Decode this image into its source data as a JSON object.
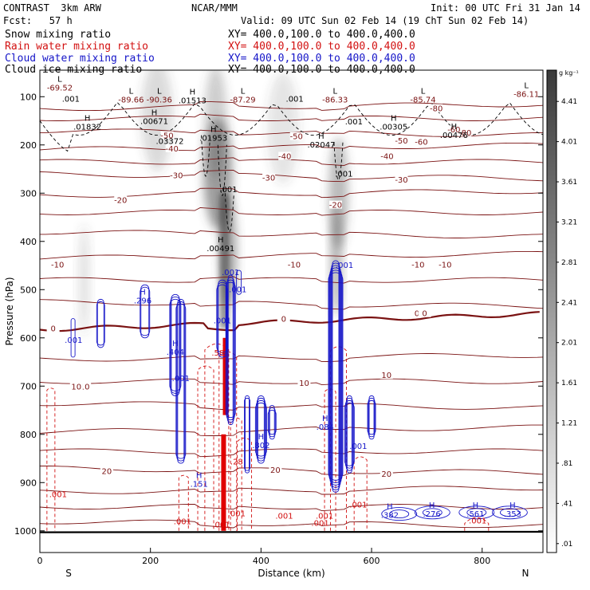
{
  "header": {
    "model": "CONTRAST  3km ARW",
    "center": "NCAR/MMM",
    "init": "Init: 00 UTC Fri 31 Jan 14",
    "fcst": "Fcst:   57 h",
    "valid": "Valid: 09 UTC Sun 02 Feb 14 (19 ChT Sun 02 Feb 14)"
  },
  "legend": [
    {
      "label": "Snow mixing ratio",
      "xy": "XY= 400.0,100.0 to 400.0,400.0",
      "color": "#000000"
    },
    {
      "label": "Rain water mixing ratio",
      "xy": "XY= 400.0,100.0 to 400.0,400.0",
      "color": "#d21010"
    },
    {
      "label": "Cloud water mixing ratio",
      "xy": "XY= 400.0,100.0 to 400.0,400.0",
      "color": "#1515c8"
    },
    {
      "label": "Cloud ice mixing ratio",
      "xy": "XY= 400.0,100.0 to 400.0,400.0",
      "color": "#000000"
    }
  ],
  "colorbar": {
    "unit": "g kg⁻¹",
    "labels": [
      "4.41",
      "4.01",
      "3.61",
      "3.21",
      "2.81",
      "2.41",
      "2.01",
      "1.61",
      "1.21",
      ".81",
      ".41",
      ".01"
    ]
  },
  "chart_data": {
    "type": "cross-section contour",
    "xlabel": "Distance (km)",
    "ylabel": "Pressure (hPa)",
    "xlim": [
      0,
      910
    ],
    "ylim": [
      1045,
      45
    ],
    "x_ticks": [
      0,
      200,
      400,
      600,
      800
    ],
    "y_ticks": [
      100,
      200,
      300,
      400,
      500,
      600,
      700,
      800,
      900,
      1000
    ],
    "x_end_labels": {
      "left": "S",
      "right": "N"
    },
    "grid": false,
    "temperature_contours": [
      {
        "label": "-80",
        "x": 717,
        "p": 127
      },
      {
        "label": "-80",
        "x": 769,
        "p": 177
      },
      {
        "label": "-60",
        "x": 749,
        "p": 171
      },
      {
        "label": "-60",
        "x": 690,
        "p": 196
      },
      {
        "label": "-50",
        "x": 230,
        "p": 183
      },
      {
        "label": "-50",
        "x": 464,
        "p": 185
      },
      {
        "label": "-50",
        "x": 654,
        "p": 194
      },
      {
        "label": "-40",
        "x": 239,
        "p": 210
      },
      {
        "label": "-40",
        "x": 443,
        "p": 226
      },
      {
        "label": "-40",
        "x": 628,
        "p": 226
      },
      {
        "label": "-30",
        "x": 247,
        "p": 266
      },
      {
        "label": "-30",
        "x": 414,
        "p": 271
      },
      {
        "label": "-30",
        "x": 654,
        "p": 275
      },
      {
        "label": "-20",
        "x": 146,
        "p": 317
      },
      {
        "label": "-20",
        "x": 535,
        "p": 327
      },
      {
        "label": "-10",
        "x": 32,
        "p": 451
      },
      {
        "label": "-10",
        "x": 460,
        "p": 451
      },
      {
        "label": "-10",
        "x": 684,
        "p": 451
      },
      {
        "label": "-10",
        "x": 733,
        "p": 451
      },
      {
        "label": "0",
        "x": 682,
        "p": 552
      },
      {
        "label": "0",
        "x": 696,
        "p": 552
      },
      {
        "label": "0",
        "x": 441,
        "p": 563
      },
      {
        "label": "0",
        "x": 24,
        "p": 583
      },
      {
        "label": "10",
        "x": 81,
        "p": 704
      },
      {
        "label": "10",
        "x": 478,
        "p": 696
      },
      {
        "label": "10",
        "x": 627,
        "p": 680
      },
      {
        "label": "10",
        "x": 66,
        "p": 704
      },
      {
        "label": "20",
        "x": 121,
        "p": 879
      },
      {
        "label": "20",
        "x": 426,
        "p": 876
      },
      {
        "label": "20",
        "x": 627,
        "p": 885
      }
    ],
    "low_markers": [
      {
        "label": "L",
        "value": "-69.52",
        "x": 36,
        "p": 79
      },
      {
        "label": "L",
        "value": "-89.66",
        "x": 165,
        "p": 104
      },
      {
        "label": "L",
        "value": "-90.36",
        "x": 216,
        "p": 104
      },
      {
        "label": "L",
        "value": "-87.29",
        "x": 367,
        "p": 104
      },
      {
        "label": "L",
        "value": "-86.33",
        "x": 534,
        "p": 104
      },
      {
        "label": "L",
        "value": "-85.74",
        "x": 693,
        "p": 104
      },
      {
        "label": "L",
        "value": "-86.11",
        "x": 880,
        "p": 92
      }
    ],
    "snow_labels": [
      {
        "label": ".001",
        "x": 56,
        "p": 110
      },
      {
        "label": ".001",
        "x": 461,
        "p": 110
      },
      {
        "label": ".001",
        "x": 568,
        "p": 157
      },
      {
        "label": ".001",
        "x": 341,
        "p": 298
      },
      {
        "label": ".001",
        "x": 550,
        "p": 266
      }
    ],
    "ice_highs": [
      {
        "label": "H",
        "value": ".01513",
        "x": 276,
        "p": 105
      },
      {
        "label": "H",
        "value": ".01832",
        "x": 86,
        "p": 160
      },
      {
        "label": "H",
        "value": ".00671",
        "x": 207,
        "p": 148
      },
      {
        "label": "H",
        "value": ".01953",
        "x": 314,
        "p": 183
      },
      {
        "label": "H",
        "value": ".02047",
        "x": 509,
        "p": 197
      },
      {
        "label": "H",
        "value": ".00305",
        "x": 640,
        "p": 160
      },
      {
        "label": "H",
        "value": ".00476",
        "x": 749,
        "p": 177
      },
      {
        "label": ".03372",
        "value": "",
        "x": 235,
        "p": 198
      },
      {
        "label": "H",
        "value": ".00491",
        "x": 327,
        "p": 412
      }
    ],
    "cloud_water_labels": [
      {
        "label": "H",
        "value": ".296",
        "x": 186,
        "p": 520
      },
      {
        "label": ".001",
        "x": 61,
        "p": 610
      },
      {
        "label": ".001",
        "x": 358,
        "p": 505
      },
      {
        "label": ".001",
        "x": 345,
        "p": 470
      },
      {
        "label": ".001",
        "x": 551,
        "p": 455
      },
      {
        "label": "H",
        "value": ".404",
        "x": 245,
        "p": 627
      },
      {
        "label": ".001",
        "x": 330,
        "p": 570
      },
      {
        "label": "H",
        "value": ".084",
        "x": 516,
        "p": 782
      },
      {
        "label": "H",
        "value": ".802",
        "x": 400,
        "p": 820
      },
      {
        "label": ".001",
        "x": 576,
        "p": 830
      },
      {
        "label": ".001",
        "x": 255,
        "p": 690
      },
      {
        "label": "H",
        "value": ".151",
        "x": 288,
        "p": 900
      },
      {
        "label": "H",
        "value": ".382",
        "x": 633,
        "p": 965
      },
      {
        "label": "H",
        "value": ".276",
        "x": 709,
        "p": 962
      },
      {
        "label": "H",
        "value": ".561",
        "x": 788,
        "p": 962
      },
      {
        "label": "H",
        "value": ".353",
        "x": 855,
        "p": 962
      }
    ],
    "rain_labels": [
      {
        "label": ".001",
        "x": 33,
        "p": 930
      },
      {
        "label": ".001",
        "x": 258,
        "p": 986
      },
      {
        "label": ".001",
        "x": 356,
        "p": 970
      },
      {
        "label": ".001",
        "x": 442,
        "p": 975
      },
      {
        "label": ".001",
        "x": 515,
        "p": 975
      },
      {
        "label": ".001",
        "x": 576,
        "p": 952
      },
      {
        "label": ".001",
        "x": 507,
        "p": 990
      },
      {
        "label": ".001",
        "x": 328,
        "p": 993
      },
      {
        "label": ".001",
        "x": 792,
        "p": 985
      },
      {
        "label": ".28",
        "x": 356,
        "p": 862
      },
      {
        "label": ".58",
        "x": 322,
        "p": 637
      }
    ]
  }
}
